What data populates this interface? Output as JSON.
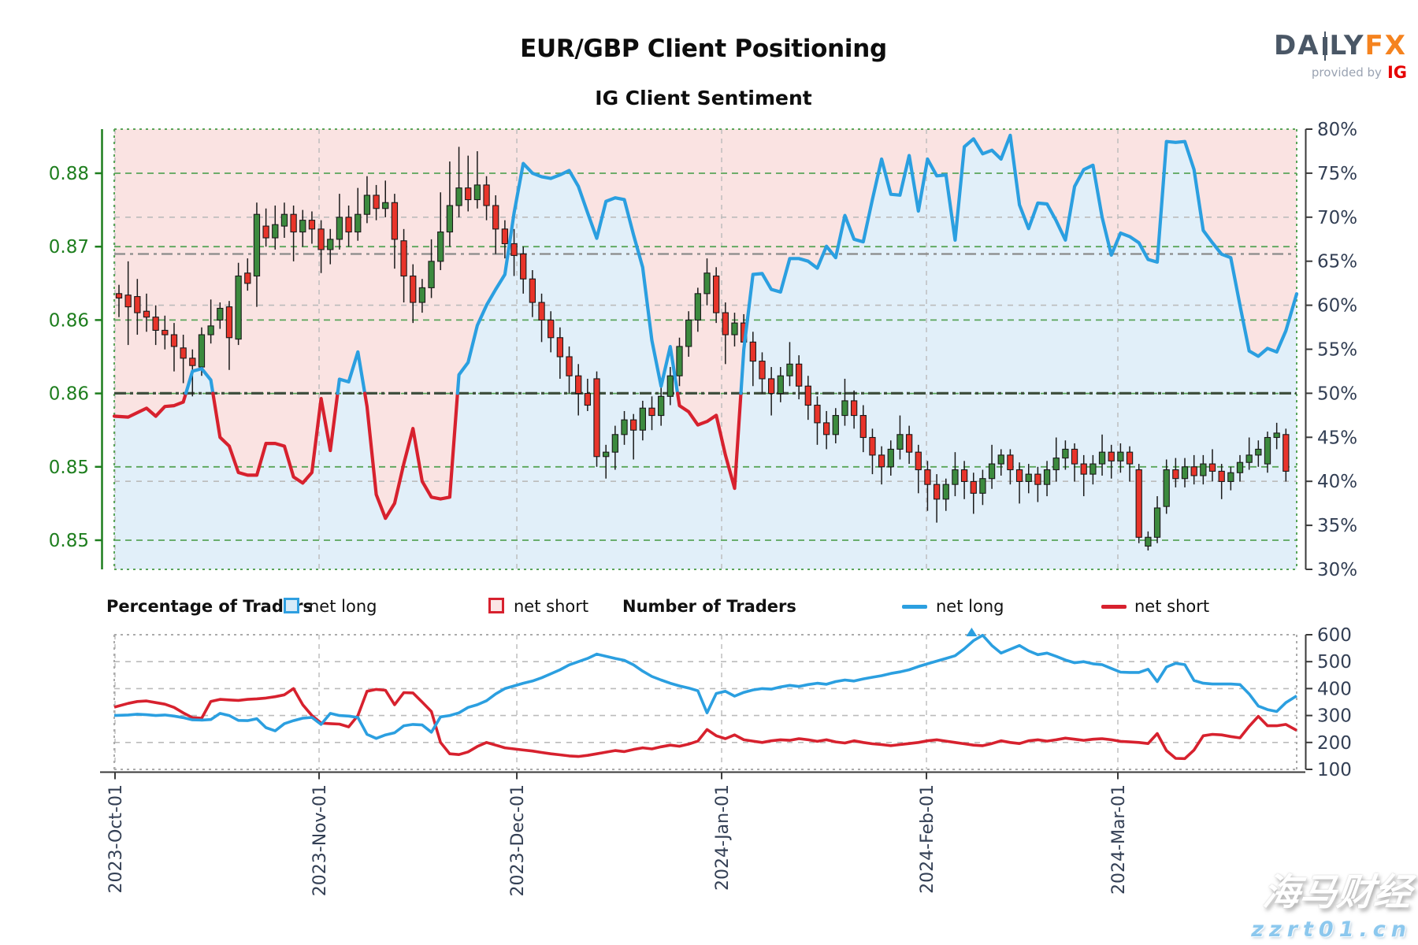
{
  "header": {
    "title": "EUR/GBP Client Positioning",
    "subtitle": "IG Client Sentiment"
  },
  "logo": {
    "brand_a": "DA",
    "brand_b": "LY",
    "brand_fx": "FX",
    "provided_by": "provided by",
    "ig": "IG"
  },
  "legend": {
    "pct_header": "Percentage of Traders",
    "num_header": "Number of Traders",
    "net_long": "net long",
    "net_short": "net short"
  },
  "watermark": {
    "line1": "海马财经",
    "line2": "zzrt01.cn"
  },
  "colors": {
    "net_long_line": "#2b9fe0",
    "net_short_line": "#d7212e",
    "long_fill": "#e1eff9",
    "short_fill": "#fae3e2",
    "candle_up": "#3c8a3e",
    "candle_down": "#e8342a",
    "candle_edge": "#1a1a1a",
    "price_axis_green": "#1e7e1e",
    "grid_green": "#5aa55a",
    "grid_gray": "#bbbbbb",
    "axis_dark": "#3a3a3a",
    "label_slate": "#333f54",
    "fifty_line": "#40503f",
    "open_line": "#8a8a8a"
  },
  "chart_data": [
    {
      "type": "candlestick+sentiment-line",
      "title": "IG Client Sentiment",
      "legend_position": "below",
      "grid": true,
      "price_axis": {
        "side": "left",
        "labels": [
          "0.88",
          "0.87",
          "0.86",
          "0.86",
          "0.85",
          "0.85"
        ],
        "values": [
          0.875,
          0.87,
          0.865,
          0.86,
          0.855,
          0.85
        ]
      },
      "pct_axis": {
        "side": "right",
        "labels": [
          "80%",
          "75%",
          "70%",
          "65%",
          "60%",
          "55%",
          "50%",
          "45%",
          "40%",
          "35%",
          "30%"
        ],
        "values": [
          80,
          75,
          70,
          65,
          60,
          55,
          50,
          45,
          40,
          35,
          30
        ],
        "range": [
          30,
          80
        ]
      },
      "x_axis": {
        "labels": [
          "2023-Oct-01",
          "2023-Nov-01",
          "2023-Dec-01",
          "2024-Jan-01",
          "2024-Feb-01",
          "2024-Mar-01"
        ],
        "tick_day_index": [
          -0.43,
          21.78,
          43.3,
          65.59,
          87.88,
          108.71
        ]
      },
      "reference_lines": {
        "fifty_pct": 50,
        "price_open_line": 0.8695
      },
      "gray_pct_gridlines": [
        70,
        60,
        40
      ],
      "price_range_approx": [
        0.848,
        0.878
      ],
      "candles_ohlc": [
        [
          0.8668,
          0.8674,
          0.8652,
          0.8665
        ],
        [
          0.8667,
          0.869,
          0.8633,
          0.8659
        ],
        [
          0.8666,
          0.8678,
          0.864,
          0.8655
        ],
        [
          0.8656,
          0.8668,
          0.8642,
          0.8652
        ],
        [
          0.8652,
          0.866,
          0.8633,
          0.8643
        ],
        [
          0.8643,
          0.8653,
          0.863,
          0.864
        ],
        [
          0.864,
          0.8648,
          0.8615,
          0.8632
        ],
        [
          0.8631,
          0.864,
          0.8607,
          0.8624
        ],
        [
          0.8624,
          0.863,
          0.8598,
          0.8619
        ],
        [
          0.8618,
          0.8645,
          0.8612,
          0.864
        ],
        [
          0.864,
          0.8664,
          0.8634,
          0.8646
        ],
        [
          0.865,
          0.8662,
          0.8644,
          0.8658
        ],
        [
          0.8659,
          0.8663,
          0.8616,
          0.8638
        ],
        [
          0.8637,
          0.8689,
          0.8633,
          0.868
        ],
        [
          0.8682,
          0.8692,
          0.867,
          0.8675
        ],
        [
          0.868,
          0.873,
          0.8659,
          0.8722
        ],
        [
          0.8714,
          0.8726,
          0.87,
          0.8706
        ],
        [
          0.8706,
          0.8728,
          0.8698,
          0.8715
        ],
        [
          0.8714,
          0.873,
          0.8706,
          0.8722
        ],
        [
          0.8722,
          0.8728,
          0.869,
          0.871
        ],
        [
          0.871,
          0.8725,
          0.87,
          0.8718
        ],
        [
          0.8718,
          0.8724,
          0.8702,
          0.8712
        ],
        [
          0.8712,
          0.8718,
          0.8682,
          0.8698
        ],
        [
          0.8698,
          0.8712,
          0.8688,
          0.8705
        ],
        [
          0.8705,
          0.8736,
          0.8698,
          0.872
        ],
        [
          0.872,
          0.8728,
          0.87,
          0.871
        ],
        [
          0.871,
          0.874,
          0.8704,
          0.8722
        ],
        [
          0.8722,
          0.8748,
          0.8716,
          0.8735
        ],
        [
          0.8735,
          0.8742,
          0.8718,
          0.8726
        ],
        [
          0.8726,
          0.8745,
          0.872,
          0.873
        ],
        [
          0.873,
          0.8736,
          0.8685,
          0.8705
        ],
        [
          0.8704,
          0.8712,
          0.8662,
          0.868
        ],
        [
          0.868,
          0.8688,
          0.8648,
          0.8662
        ],
        [
          0.8662,
          0.8678,
          0.8655,
          0.8672
        ],
        [
          0.8672,
          0.8705,
          0.8665,
          0.869
        ],
        [
          0.869,
          0.8737,
          0.8684,
          0.871
        ],
        [
          0.871,
          0.8758,
          0.87,
          0.8728
        ],
        [
          0.8728,
          0.8768,
          0.872,
          0.874
        ],
        [
          0.874,
          0.8762,
          0.8724,
          0.8732
        ],
        [
          0.8732,
          0.8765,
          0.8726,
          0.8742
        ],
        [
          0.8742,
          0.8748,
          0.8718,
          0.8728
        ],
        [
          0.8728,
          0.8735,
          0.8695,
          0.8712
        ],
        [
          0.8712,
          0.8718,
          0.8692,
          0.8702
        ],
        [
          0.8702,
          0.8712,
          0.868,
          0.8694
        ],
        [
          0.8695,
          0.87,
          0.8668,
          0.8678
        ],
        [
          0.8678,
          0.8684,
          0.8652,
          0.8662
        ],
        [
          0.8662,
          0.8668,
          0.8635,
          0.865
        ],
        [
          0.865,
          0.8656,
          0.8628,
          0.8638
        ],
        [
          0.8638,
          0.8645,
          0.861,
          0.8625
        ],
        [
          0.8625,
          0.8632,
          0.86,
          0.8612
        ],
        [
          0.8612,
          0.862,
          0.8585,
          0.86
        ],
        [
          0.86,
          0.861,
          0.8588,
          0.8592
        ],
        [
          0.861,
          0.8615,
          0.855,
          0.8557
        ],
        [
          0.8557,
          0.8565,
          0.8542,
          0.856
        ],
        [
          0.856,
          0.8578,
          0.8548,
          0.8572
        ],
        [
          0.8572,
          0.8588,
          0.8565,
          0.8582
        ],
        [
          0.8582,
          0.8586,
          0.8555,
          0.8575
        ],
        [
          0.8575,
          0.8595,
          0.8568,
          0.859
        ],
        [
          0.859,
          0.8598,
          0.8575,
          0.8585
        ],
        [
          0.8585,
          0.8604,
          0.8578,
          0.8598
        ],
        [
          0.8598,
          0.8618,
          0.8592,
          0.8612
        ],
        [
          0.8612,
          0.8638,
          0.8605,
          0.8632
        ],
        [
          0.8632,
          0.8656,
          0.8625,
          0.865
        ],
        [
          0.865,
          0.8672,
          0.8642,
          0.8668
        ],
        [
          0.8668,
          0.8692,
          0.866,
          0.8682
        ],
        [
          0.868,
          0.8686,
          0.8648,
          0.8655
        ],
        [
          0.8655,
          0.8662,
          0.862,
          0.864
        ],
        [
          0.864,
          0.8655,
          0.8632,
          0.8648
        ],
        [
          0.8648,
          0.8654,
          0.8625,
          0.8635
        ],
        [
          0.8635,
          0.8642,
          0.8605,
          0.8622
        ],
        [
          0.8622,
          0.8628,
          0.86,
          0.861
        ],
        [
          0.861,
          0.8618,
          0.8585,
          0.86
        ],
        [
          0.86,
          0.8618,
          0.8594,
          0.8612
        ],
        [
          0.8612,
          0.8635,
          0.8605,
          0.862
        ],
        [
          0.862,
          0.8626,
          0.8596,
          0.8605
        ],
        [
          0.8605,
          0.8612,
          0.8582,
          0.8592
        ],
        [
          0.8592,
          0.8598,
          0.8565,
          0.858
        ],
        [
          0.858,
          0.8588,
          0.8562,
          0.8572
        ],
        [
          0.8572,
          0.859,
          0.8566,
          0.8585
        ],
        [
          0.8585,
          0.861,
          0.8578,
          0.8595
        ],
        [
          0.8595,
          0.8602,
          0.8576,
          0.8585
        ],
        [
          0.8585,
          0.8592,
          0.856,
          0.857
        ],
        [
          0.857,
          0.8576,
          0.8545,
          0.8558
        ],
        [
          0.8558,
          0.8564,
          0.8538,
          0.855
        ],
        [
          0.855,
          0.8568,
          0.8544,
          0.8562
        ],
        [
          0.8562,
          0.8585,
          0.8555,
          0.8572
        ],
        [
          0.8572,
          0.8578,
          0.8552,
          0.856
        ],
        [
          0.856,
          0.8565,
          0.8532,
          0.8548
        ],
        [
          0.8548,
          0.8554,
          0.852,
          0.8538
        ],
        [
          0.8538,
          0.8545,
          0.8512,
          0.8528
        ],
        [
          0.8528,
          0.8542,
          0.852,
          0.8538
        ],
        [
          0.8538,
          0.856,
          0.853,
          0.8548
        ],
        [
          0.8548,
          0.8554,
          0.8528,
          0.854
        ],
        [
          0.854,
          0.8546,
          0.8518,
          0.8532
        ],
        [
          0.8532,
          0.8548,
          0.8524,
          0.8542
        ],
        [
          0.8542,
          0.8565,
          0.8535,
          0.8552
        ],
        [
          0.8552,
          0.8562,
          0.8544,
          0.8558
        ],
        [
          0.8558,
          0.8562,
          0.8538,
          0.8548
        ],
        [
          0.8548,
          0.8553,
          0.8525,
          0.854
        ],
        [
          0.854,
          0.8552,
          0.8532,
          0.8545
        ],
        [
          0.8545,
          0.855,
          0.8526,
          0.8538
        ],
        [
          0.8538,
          0.8554,
          0.853,
          0.8548
        ],
        [
          0.8548,
          0.857,
          0.854,
          0.8556
        ],
        [
          0.8556,
          0.8568,
          0.8548,
          0.8562
        ],
        [
          0.8562,
          0.8566,
          0.854,
          0.8552
        ],
        [
          0.8552,
          0.8558,
          0.853,
          0.8545
        ],
        [
          0.8545,
          0.8558,
          0.8538,
          0.8552
        ],
        [
          0.8552,
          0.8572,
          0.8544,
          0.856
        ],
        [
          0.856,
          0.8565,
          0.8542,
          0.8554
        ],
        [
          0.8554,
          0.8566,
          0.8546,
          0.856
        ],
        [
          0.856,
          0.8564,
          0.854,
          0.8552
        ],
        [
          0.8548,
          0.8552,
          0.8498,
          0.8502
        ],
        [
          0.8496,
          0.8506,
          0.8493,
          0.8502
        ],
        [
          0.8502,
          0.853,
          0.8498,
          0.8522
        ],
        [
          0.8523,
          0.8555,
          0.8518,
          0.8548
        ],
        [
          0.8548,
          0.8556,
          0.8536,
          0.8542
        ],
        [
          0.8542,
          0.8556,
          0.8536,
          0.855
        ],
        [
          0.855,
          0.8558,
          0.8538,
          0.8544
        ],
        [
          0.8544,
          0.8558,
          0.8538,
          0.8552
        ],
        [
          0.8552,
          0.8562,
          0.854,
          0.8547
        ],
        [
          0.8547,
          0.8552,
          0.8528,
          0.854
        ],
        [
          0.854,
          0.855,
          0.8534,
          0.8546
        ],
        [
          0.8546,
          0.8558,
          0.854,
          0.8553
        ],
        [
          0.8553,
          0.857,
          0.8548,
          0.8558
        ],
        [
          0.8558,
          0.8568,
          0.855,
          0.8562
        ],
        [
          0.8552,
          0.8574,
          0.8546,
          0.857
        ],
        [
          0.857,
          0.858,
          0.8562,
          0.8573
        ],
        [
          0.8572,
          0.8576,
          0.854,
          0.8547
        ]
      ],
      "net_long_pct": [
        47.4,
        47.3,
        47.8,
        48.3,
        47.4,
        48.5,
        48.6,
        49.0,
        52.5,
        52.8,
        51.5,
        45.0,
        44.0,
        41.0,
        40.7,
        40.7,
        44.3,
        44.3,
        44.0,
        40.5,
        39.8,
        41.0,
        49.4,
        43.5,
        51.6,
        51.3,
        54.7,
        48.5,
        38.5,
        35.8,
        37.5,
        42.0,
        46.0,
        40.0,
        38.2,
        38.0,
        38.2,
        52.1,
        53.5,
        57.7,
        60.0,
        61.8,
        63.5,
        70.5,
        76.1,
        75.0,
        74.6,
        74.4,
        74.8,
        75.3,
        73.5,
        70.5,
        67.6,
        71.8,
        72.2,
        72.0,
        68.0,
        64.3,
        56.0,
        50.8,
        55.3,
        48.6,
        47.9,
        46.4,
        46.8,
        47.5,
        43.0,
        39.2,
        55.0,
        63.5,
        63.6,
        61.8,
        61.5,
        65.3,
        65.3,
        65.0,
        64.2,
        66.7,
        65.4,
        70.2,
        67.5,
        67.2,
        72.0,
        76.6,
        72.6,
        72.5,
        77.0,
        70.7,
        76.6,
        74.7,
        74.8,
        67.4,
        78.0,
        78.9,
        77.2,
        77.6,
        76.6,
        79.3,
        71.4,
        68.7,
        71.6,
        71.5,
        69.6,
        67.4,
        73.5,
        75.4,
        75.9,
        70.0,
        65.7,
        68.2,
        67.8,
        67.1,
        65.2,
        64.9,
        78.6,
        78.5,
        78.6,
        75.4,
        68.5,
        67.1,
        65.8,
        65.4,
        60.0,
        54.8,
        54.2,
        55.1,
        54.7,
        57.1,
        61.3
      ]
    },
    {
      "type": "line",
      "series_names": [
        "net long",
        "net short"
      ],
      "count_axis": {
        "side": "right",
        "labels": [
          "600",
          "500",
          "400",
          "300",
          "200",
          "100"
        ],
        "values": [
          600,
          500,
          400,
          300,
          200,
          100
        ],
        "range": [
          100,
          600
        ]
      },
      "net_long_count": [
        300,
        302,
        305,
        303,
        300,
        302,
        298,
        292,
        284,
        283,
        285,
        308,
        300,
        282,
        281,
        288,
        255,
        243,
        270,
        281,
        290,
        293,
        267,
        308,
        300,
        298,
        293,
        230,
        215,
        228,
        236,
        262,
        267,
        265,
        238,
        295,
        300,
        310,
        330,
        340,
        355,
        380,
        400,
        410,
        420,
        428,
        440,
        455,
        470,
        488,
        500,
        512,
        528,
        520,
        512,
        505,
        488,
        465,
        445,
        432,
        420,
        410,
        402,
        392,
        310,
        382,
        390,
        372,
        386,
        395,
        400,
        398,
        406,
        412,
        408,
        415,
        420,
        416,
        426,
        432,
        428,
        436,
        442,
        448,
        456,
        462,
        470,
        482,
        492,
        502,
        512,
        522,
        548,
        578,
        598,
        560,
        532,
        546,
        560,
        540,
        526,
        532,
        520,
        506,
        496,
        500,
        492,
        489,
        475,
        461,
        460,
        460,
        472,
        426,
        480,
        494,
        489,
        430,
        420,
        417,
        417,
        417,
        415,
        380,
        335,
        322,
        315,
        348,
        373
      ],
      "net_short_count": [
        331,
        345,
        352,
        354,
        348,
        342,
        330,
        310,
        292,
        290,
        352,
        360,
        358,
        356,
        360,
        362,
        365,
        370,
        377,
        400,
        340,
        300,
        272,
        270,
        268,
        258,
        300,
        390,
        397,
        394,
        340,
        385,
        384,
        350,
        315,
        200,
        158,
        155,
        165,
        185,
        200,
        190,
        180,
        176,
        172,
        168,
        163,
        158,
        154,
        150,
        148,
        152,
        158,
        164,
        170,
        166,
        174,
        180,
        176,
        184,
        190,
        186,
        194,
        205,
        248,
        225,
        214,
        228,
        210,
        205,
        200,
        206,
        210,
        208,
        214,
        210,
        204,
        210,
        202,
        198,
        206,
        200,
        195,
        192,
        188,
        192,
        196,
        200,
        206,
        210,
        205,
        200,
        195,
        190,
        188,
        196,
        206,
        200,
        196,
        206,
        210,
        205,
        210,
        216,
        212,
        208,
        212,
        214,
        210,
        204,
        202,
        200,
        196,
        233,
        170,
        141,
        140,
        172,
        225,
        230,
        228,
        222,
        217,
        260,
        297,
        262,
        262,
        267,
        245
      ],
      "clip_marker_day_index": 92.8
    }
  ]
}
